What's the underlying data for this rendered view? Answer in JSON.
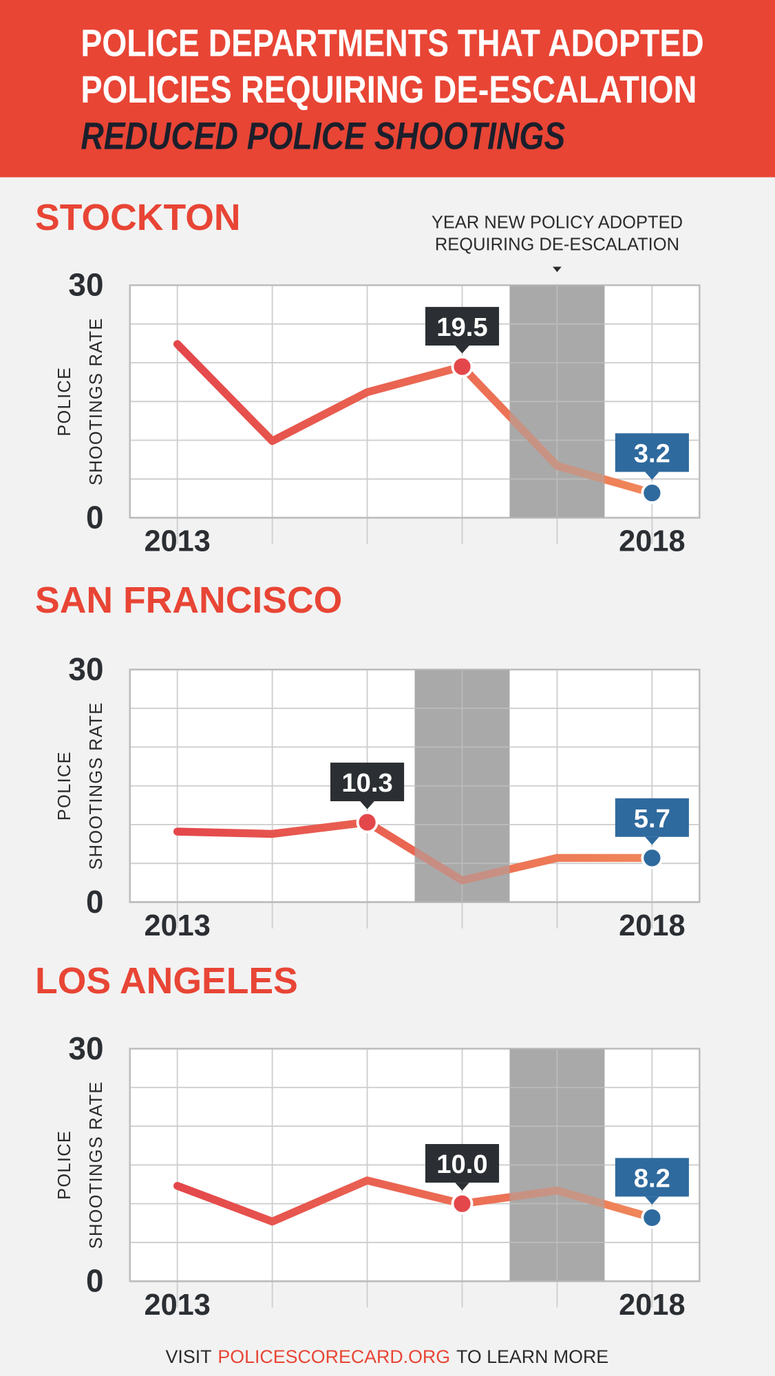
{
  "header": {
    "title": [
      "POLICE DEPARTMENTS THAT ADOPTED",
      "POLICIES REQUIRING DE-ESCALATION",
      "REDUCED POLICE SHOOTINGS"
    ]
  },
  "footer": [
    "VISIT",
    "POLICESCORECARD.ORG",
    "TO LEARN MORE"
  ],
  "chart_data": [
    {
      "type": "line",
      "title": "STOCKTON",
      "annotation": [
        "YEAR NEW POLICY ADOPTED",
        "REQUIRING DE-ESCALATION"
      ],
      "x": [
        2013,
        2014,
        2015,
        2016,
        2017,
        2018
      ],
      "xticks": [
        2013,
        2018
      ],
      "xlim": [
        2012.5,
        2018.5
      ],
      "ylim": [
        0,
        30
      ],
      "yticks": [
        0,
        30
      ],
      "ygrid": [
        0,
        5,
        10,
        15,
        20,
        25,
        30
      ],
      "ylabel": [
        "POLICE",
        "SHOOTINGS RATE"
      ],
      "values": [
        22.4,
        9.9,
        16.2,
        19.5,
        6.7,
        3.2
      ],
      "value_labels": [
        null,
        null,
        null,
        "19.5",
        null,
        "3.2"
      ],
      "highlight_x": 2017,
      "color": "#e4474b",
      "end_color": "#f0875a",
      "marker_color": "#e4474b",
      "last_color": "#2f6a9e",
      "band_color": "#a9a9a9"
    },
    {
      "type": "line",
      "title": "SAN FRANCISCO",
      "x": [
        2013,
        2014,
        2015,
        2016,
        2017,
        2018
      ],
      "xticks": [
        2013,
        2018
      ],
      "xlim": [
        2012.5,
        2018.5
      ],
      "ylim": [
        0,
        30
      ],
      "yticks": [
        0,
        30
      ],
      "ygrid": [
        0,
        5,
        10,
        15,
        20,
        25,
        30
      ],
      "ylabel": [
        "POLICE",
        "SHOOTINGS RATE"
      ],
      "values": [
        9.1,
        8.8,
        10.3,
        2.8,
        5.7,
        5.7
      ],
      "value_labels": [
        null,
        null,
        "10.3",
        null,
        null,
        "5.7"
      ],
      "highlight_x": 2016,
      "color": "#e4474b",
      "end_color": "#f0875a",
      "marker_color": "#e4474b",
      "last_color": "#2f6a9e",
      "band_color": "#a9a9a9"
    },
    {
      "type": "line",
      "title": "LOS ANGELES",
      "x": [
        2013,
        2014,
        2015,
        2016,
        2017,
        2018
      ],
      "xticks": [
        2013,
        2018
      ],
      "xlim": [
        2012.5,
        2018.5
      ],
      "ylim": [
        0,
        30
      ],
      "yticks": [
        0,
        30
      ],
      "ygrid": [
        0,
        5,
        10,
        15,
        20,
        25,
        30
      ],
      "ylabel": [
        "POLICE",
        "SHOOTINGS RATE"
      ],
      "values": [
        12.3,
        7.7,
        13.0,
        10.0,
        11.7,
        8.2
      ],
      "value_labels": [
        null,
        null,
        null,
        "10.0",
        null,
        "8.2"
      ],
      "highlight_x": 2017,
      "color": "#e4474b",
      "end_color": "#f0875a",
      "marker_color": "#e4474b",
      "last_color": "#2f6a9e",
      "band_color": "#a9a9a9"
    }
  ]
}
